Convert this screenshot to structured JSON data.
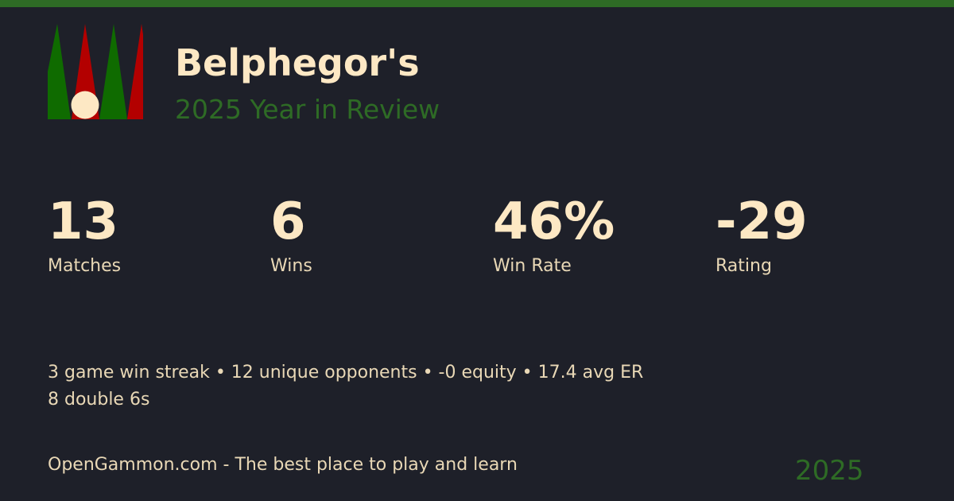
{
  "header": {
    "title": "Belphegor's",
    "subtitle": "2025 Year in Review"
  },
  "colors": {
    "accent_green": "#2e6b25",
    "point_green": "#0f6b00",
    "point_red": "#b30000",
    "checker": "#fde8c4",
    "background": "#1e2029"
  },
  "stats": [
    {
      "value": "13",
      "label": "Matches"
    },
    {
      "value": "6",
      "label": "Wins"
    },
    {
      "value": "46%",
      "label": "Win Rate"
    },
    {
      "value": "-29",
      "label": "Rating"
    }
  ],
  "facts": {
    "line1": "3 game win streak • 12 unique opponents • -0 equity • 17.4 avg ER",
    "line2": "8 double 6s"
  },
  "footer": {
    "tagline": "OpenGammon.com - The best place to play and learn",
    "year": "2025"
  }
}
